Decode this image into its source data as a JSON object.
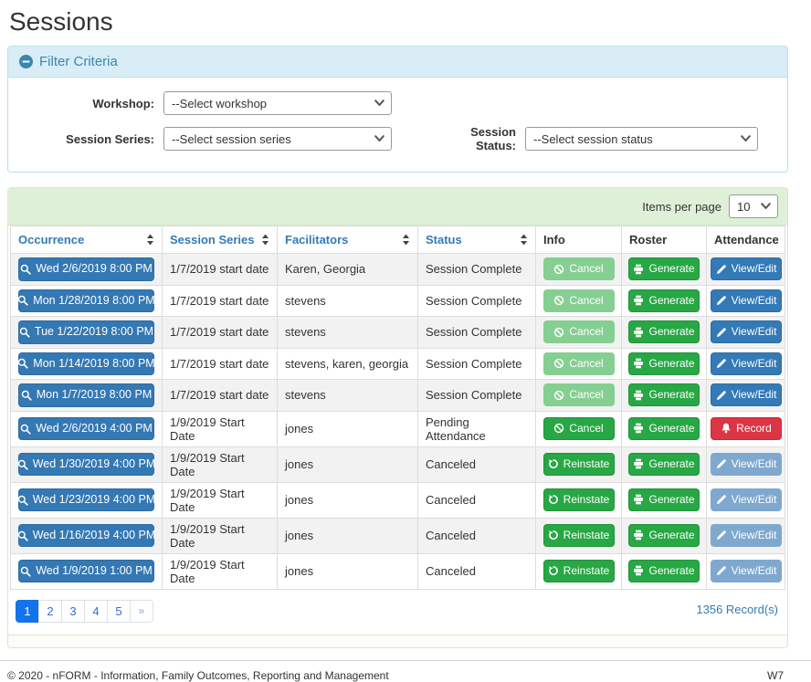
{
  "page": {
    "title": "Sessions"
  },
  "colors": {
    "filter_panel_border": "#b7dff0",
    "filter_panel_heading_bg": "#d9edf7",
    "filter_panel_accent": "#3a87ad",
    "table_panel_border": "#d6e9c6",
    "table_panel_heading_bg": "#dff0d8",
    "row_stripe": "#f2f2f2",
    "link_blue": "#337ab7",
    "button_blue": "#337ab7",
    "button_blue_disabled": "#7fa8cf",
    "button_green": "#28a745",
    "button_green_disabled": "#85cf92",
    "button_red": "#dc3545",
    "pagination_active": "#1273eb"
  },
  "filter": {
    "heading": "Filter Criteria",
    "collapse_icon": "minus-circle-icon",
    "fields": [
      {
        "label": "Workshop:",
        "value": "--Select workshop"
      },
      {
        "label": "Session Series:",
        "value": "--Select session series"
      },
      {
        "label": "Session Status:",
        "value": "--Select session status"
      }
    ]
  },
  "table": {
    "items_per_page_label": "Items per page",
    "items_per_page_value": "10",
    "columns": [
      {
        "label": "Occurrence",
        "sortable": true
      },
      {
        "label": "Session Series",
        "sortable": true
      },
      {
        "label": "Facilitators",
        "sortable": true
      },
      {
        "label": "Status",
        "sortable": true
      },
      {
        "label": "Info",
        "sortable": false
      },
      {
        "label": "Roster",
        "sortable": false
      },
      {
        "label": "Attendance",
        "sortable": false
      }
    ],
    "rows": [
      {
        "occurrence": "Wed 2/6/2019 8:00 PM",
        "session_series": "1/7/2019 start date",
        "facilitators": "Karen, Georgia",
        "status": "Session Complete",
        "info": {
          "label": "Cancel",
          "icon": "ban-icon",
          "variant": "success",
          "disabled": true
        },
        "roster": {
          "label": "Generate",
          "icon": "printer-icon",
          "variant": "success",
          "disabled": false
        },
        "attendance": {
          "label": "View/Edit",
          "icon": "pencil-icon",
          "variant": "primary",
          "disabled": false
        }
      },
      {
        "occurrence": "Mon 1/28/2019 8:00 PM",
        "session_series": "1/7/2019 start date",
        "facilitators": "stevens",
        "status": "Session Complete",
        "info": {
          "label": "Cancel",
          "icon": "ban-icon",
          "variant": "success",
          "disabled": true
        },
        "roster": {
          "label": "Generate",
          "icon": "printer-icon",
          "variant": "success",
          "disabled": false
        },
        "attendance": {
          "label": "View/Edit",
          "icon": "pencil-icon",
          "variant": "primary",
          "disabled": false
        }
      },
      {
        "occurrence": "Tue 1/22/2019 8:00 PM",
        "session_series": "1/7/2019 start date",
        "facilitators": "stevens",
        "status": "Session Complete",
        "info": {
          "label": "Cancel",
          "icon": "ban-icon",
          "variant": "success",
          "disabled": true
        },
        "roster": {
          "label": "Generate",
          "icon": "printer-icon",
          "variant": "success",
          "disabled": false
        },
        "attendance": {
          "label": "View/Edit",
          "icon": "pencil-icon",
          "variant": "primary",
          "disabled": false
        }
      },
      {
        "occurrence": "Mon 1/14/2019 8:00 PM",
        "session_series": "1/7/2019 start date",
        "facilitators": "stevens, karen, georgia",
        "status": "Session Complete",
        "info": {
          "label": "Cancel",
          "icon": "ban-icon",
          "variant": "success",
          "disabled": true
        },
        "roster": {
          "label": "Generate",
          "icon": "printer-icon",
          "variant": "success",
          "disabled": false
        },
        "attendance": {
          "label": "View/Edit",
          "icon": "pencil-icon",
          "variant": "primary",
          "disabled": false
        }
      },
      {
        "occurrence": "Mon 1/7/2019 8:00 PM",
        "session_series": "1/7/2019 start date",
        "facilitators": "stevens",
        "status": "Session Complete",
        "info": {
          "label": "Cancel",
          "icon": "ban-icon",
          "variant": "success",
          "disabled": true
        },
        "roster": {
          "label": "Generate",
          "icon": "printer-icon",
          "variant": "success",
          "disabled": false
        },
        "attendance": {
          "label": "View/Edit",
          "icon": "pencil-icon",
          "variant": "primary",
          "disabled": false
        }
      },
      {
        "occurrence": "Wed 2/6/2019 4:00 PM",
        "session_series": "1/9/2019 Start Date",
        "facilitators": "jones",
        "status": "Pending Attendance",
        "info": {
          "label": "Cancel",
          "icon": "ban-icon",
          "variant": "success",
          "disabled": false
        },
        "roster": {
          "label": "Generate",
          "icon": "printer-icon",
          "variant": "success",
          "disabled": false
        },
        "attendance": {
          "label": "Record",
          "icon": "bell-icon",
          "variant": "danger",
          "disabled": false
        }
      },
      {
        "occurrence": "Wed 1/30/2019 4:00 PM",
        "session_series": "1/9/2019 Start Date",
        "facilitators": "jones",
        "status": "Canceled",
        "info": {
          "label": "Reinstate",
          "icon": "undo-icon",
          "variant": "success",
          "disabled": false
        },
        "roster": {
          "label": "Generate",
          "icon": "printer-icon",
          "variant": "success",
          "disabled": false
        },
        "attendance": {
          "label": "View/Edit",
          "icon": "pencil-icon",
          "variant": "primary",
          "disabled": true
        }
      },
      {
        "occurrence": "Wed 1/23/2019 4:00 PM",
        "session_series": "1/9/2019 Start Date",
        "facilitators": "jones",
        "status": "Canceled",
        "info": {
          "label": "Reinstate",
          "icon": "undo-icon",
          "variant": "success",
          "disabled": false
        },
        "roster": {
          "label": "Generate",
          "icon": "printer-icon",
          "variant": "success",
          "disabled": false
        },
        "attendance": {
          "label": "View/Edit",
          "icon": "pencil-icon",
          "variant": "primary",
          "disabled": true
        }
      },
      {
        "occurrence": "Wed 1/16/2019 4:00 PM",
        "session_series": "1/9/2019 Start Date",
        "facilitators": "jones",
        "status": "Canceled",
        "info": {
          "label": "Reinstate",
          "icon": "undo-icon",
          "variant": "success",
          "disabled": false
        },
        "roster": {
          "label": "Generate",
          "icon": "printer-icon",
          "variant": "success",
          "disabled": false
        },
        "attendance": {
          "label": "View/Edit",
          "icon": "pencil-icon",
          "variant": "primary",
          "disabled": true
        }
      },
      {
        "occurrence": "Wed 1/9/2019 1:00 PM",
        "session_series": "1/9/2019 Start Date",
        "facilitators": "jones",
        "status": "Canceled",
        "info": {
          "label": "Reinstate",
          "icon": "undo-icon",
          "variant": "success",
          "disabled": false
        },
        "roster": {
          "label": "Generate",
          "icon": "printer-icon",
          "variant": "success",
          "disabled": false
        },
        "attendance": {
          "label": "View/Edit",
          "icon": "pencil-icon",
          "variant": "primary",
          "disabled": true
        }
      }
    ],
    "pagination": {
      "pages": [
        "1",
        "2",
        "3",
        "4",
        "5"
      ],
      "active": "1",
      "next": "»"
    },
    "record_count": "1356 Record(s)"
  },
  "footer": {
    "copyright": "© 2020 - nFORM - Information, Family Outcomes, Reporting and Management",
    "version": "W7"
  }
}
